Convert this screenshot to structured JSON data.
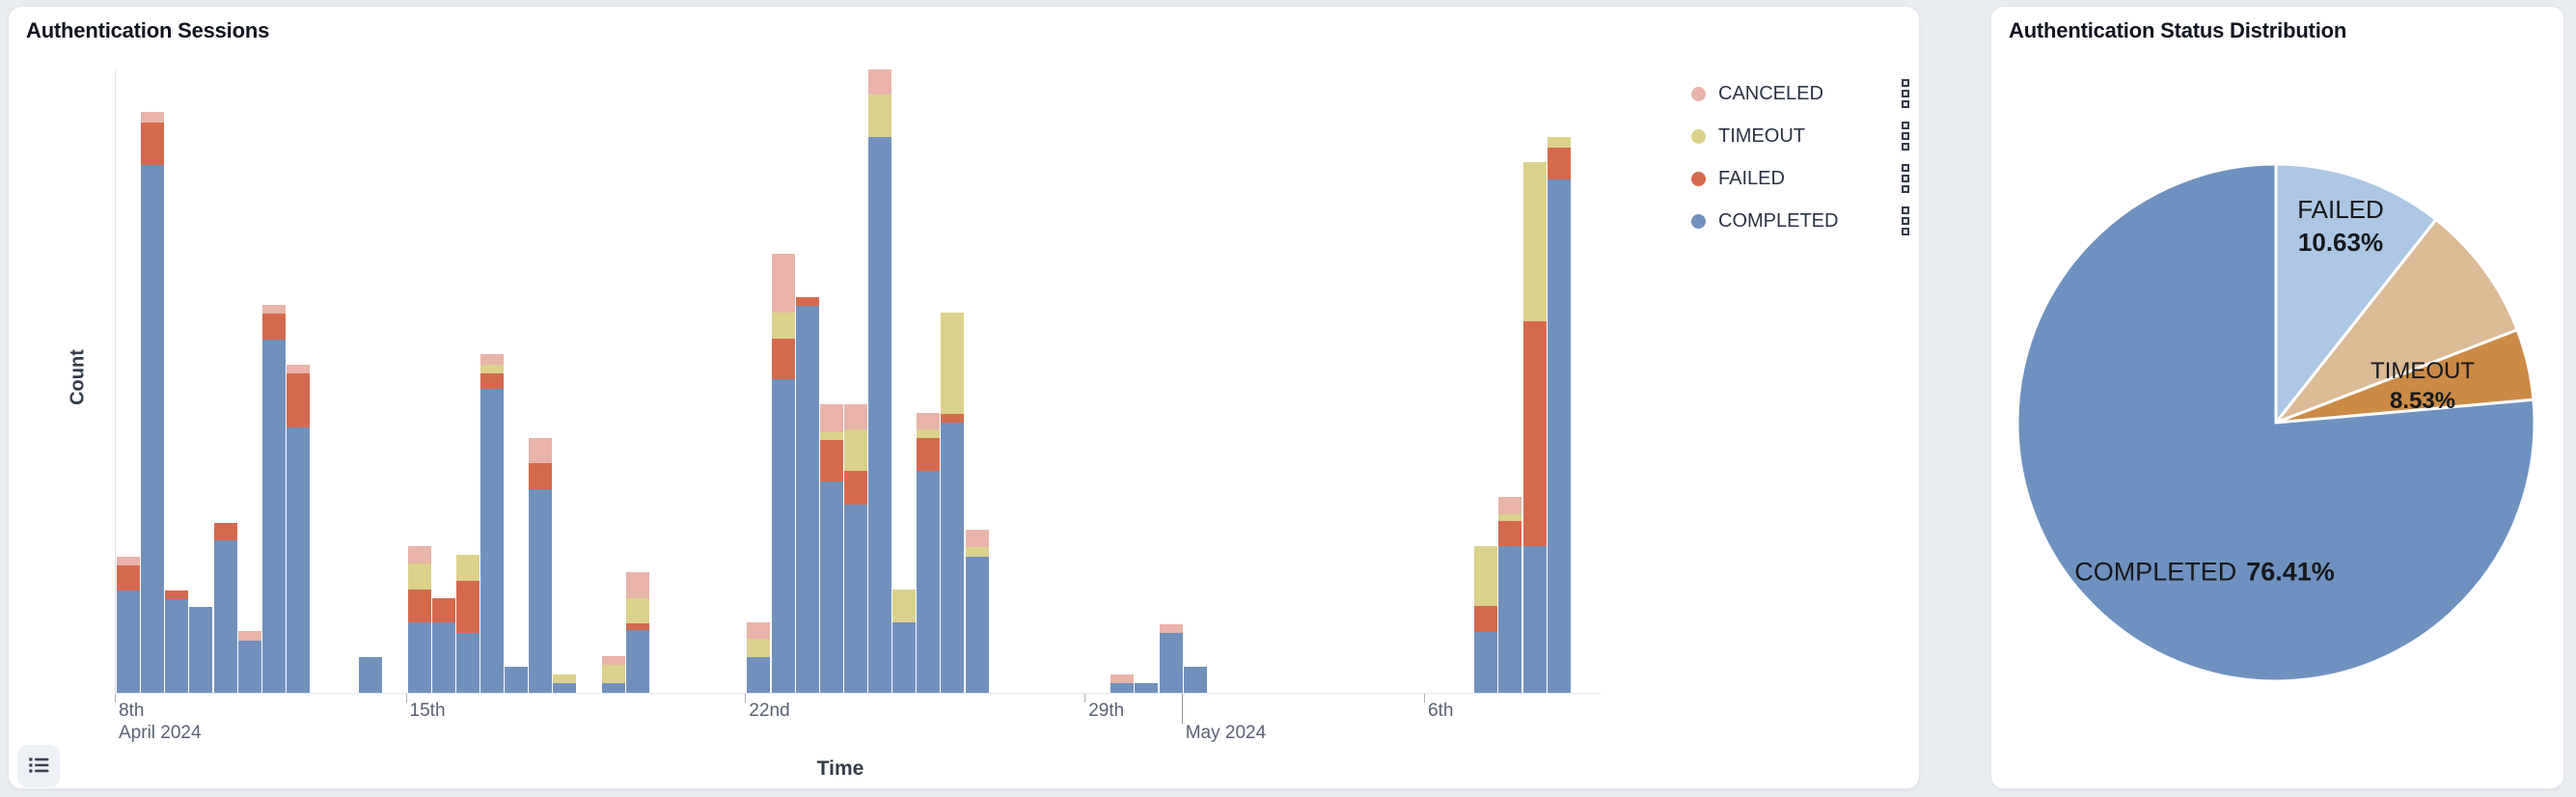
{
  "page": {
    "background_color": "#E8EBEF"
  },
  "left_card": {
    "title": "Authentication Sessions",
    "y_axis_label": "Count",
    "x_axis_label": "Time",
    "legend": [
      {
        "label": "CANCELED",
        "color": "#E8B3A9"
      },
      {
        "label": "TIMEOUT",
        "color": "#DBD18D"
      },
      {
        "label": "FAILED",
        "color": "#D5694E"
      },
      {
        "label": "COMPLETED",
        "color": "#7191BD"
      }
    ],
    "list_button_icon": "list-icon"
  },
  "right_card": {
    "title": "Authentication Status Distribution"
  },
  "chart_data": [
    {
      "type": "bar",
      "stacked": true,
      "title": "Authentication Sessions",
      "xlabel": "Time",
      "ylabel": "Count",
      "legend_position": "top-right",
      "grid": false,
      "y_axis": {
        "tick_labels_shown": false,
        "ylim": [
          0,
          660
        ],
        "note": "no numeric scale displayed; values below are pixel-proportional estimates"
      },
      "x_axis": {
        "unit": "12-hour time buckets",
        "range": "Apr 9 2024 - May 8 2024",
        "slots": 61,
        "ticks": [
          {
            "slot": 0,
            "label": "8th",
            "sub_label": "April 2024"
          },
          {
            "slot": 12,
            "label": "15th"
          },
          {
            "slot": 26,
            "label": "22nd"
          },
          {
            "slot": 40,
            "label": "29th"
          },
          {
            "slot": 44,
            "label": "",
            "sub_label": "May 2024",
            "month_boundary": true
          },
          {
            "slot": 54,
            "label": "6th"
          }
        ]
      },
      "series_colors": {
        "COMPLETED": "#7191BD",
        "FAILED": "#D5694E",
        "TIMEOUT": "#DBD18D",
        "CANCELED": "#E8B3A9"
      },
      "stack_order_bottom_to_top": [
        "COMPLETED",
        "FAILED",
        "TIMEOUT",
        "CANCELED"
      ],
      "bars": [
        {
          "slot": 0,
          "time": "Apr 9 AM",
          "completed": 106,
          "failed": 26,
          "timeout": 0,
          "canceled": 9
        },
        {
          "slot": 1,
          "time": "Apr 9 PM",
          "completed": 547,
          "failed": 44,
          "timeout": 0,
          "canceled": 11
        },
        {
          "slot": 2,
          "time": "Apr 10 AM",
          "completed": 97,
          "failed": 9,
          "timeout": 0,
          "canceled": 0
        },
        {
          "slot": 3,
          "time": "Apr 10 PM",
          "completed": 89,
          "failed": 0,
          "timeout": 0,
          "canceled": 0
        },
        {
          "slot": 4,
          "time": "Apr 11 AM",
          "completed": 158,
          "failed": 18,
          "timeout": 0,
          "canceled": 0
        },
        {
          "slot": 5,
          "time": "Apr 11 PM",
          "completed": 54,
          "failed": 0,
          "timeout": 0,
          "canceled": 10
        },
        {
          "slot": 6,
          "time": "Apr 12 AM",
          "completed": 366,
          "failed": 27,
          "timeout": 0,
          "canceled": 9
        },
        {
          "slot": 7,
          "time": "Apr 12 PM",
          "completed": 275,
          "failed": 56,
          "timeout": 0,
          "canceled": 9
        },
        {
          "slot": 10,
          "time": "Apr 14 AM",
          "completed": 37,
          "failed": 0,
          "timeout": 0,
          "canceled": 0
        },
        {
          "slot": 12,
          "time": "Apr 15 AM",
          "completed": 73,
          "failed": 34,
          "timeout": 27,
          "canceled": 18
        },
        {
          "slot": 13,
          "time": "Apr 15 PM",
          "completed": 73,
          "failed": 25,
          "timeout": 0,
          "canceled": 0
        },
        {
          "slot": 14,
          "time": "Apr 16 AM",
          "completed": 62,
          "failed": 54,
          "timeout": 27,
          "canceled": 0
        },
        {
          "slot": 15,
          "time": "Apr 16 PM",
          "completed": 315,
          "failed": 16,
          "timeout": 9,
          "canceled": 11
        },
        {
          "slot": 16,
          "time": "Apr 17 AM",
          "completed": 27,
          "failed": 0,
          "timeout": 0,
          "canceled": 0
        },
        {
          "slot": 17,
          "time": "Apr 17 PM",
          "completed": 211,
          "failed": 27,
          "timeout": 0,
          "canceled": 26
        },
        {
          "slot": 18,
          "time": "Apr 18 AM",
          "completed": 10,
          "failed": 0,
          "timeout": 9,
          "canceled": 0
        },
        {
          "slot": 20,
          "time": "Apr 19 AM",
          "completed": 10,
          "failed": 0,
          "timeout": 19,
          "canceled": 9
        },
        {
          "slot": 21,
          "time": "Apr 19 PM",
          "completed": 65,
          "failed": 7,
          "timeout": 26,
          "canceled": 27
        },
        {
          "slot": 26,
          "time": "Apr 22 AM",
          "completed": 37,
          "failed": 0,
          "timeout": 19,
          "canceled": 17
        },
        {
          "slot": 27,
          "time": "Apr 22 PM",
          "completed": 325,
          "failed": 42,
          "timeout": 27,
          "canceled": 61
        },
        {
          "slot": 28,
          "time": "Apr 23 AM",
          "completed": 401,
          "failed": 9,
          "timeout": 0,
          "canceled": 0
        },
        {
          "slot": 29,
          "time": "Apr 23 PM",
          "completed": 219,
          "failed": 43,
          "timeout": 8,
          "canceled": 29
        },
        {
          "slot": 30,
          "time": "Apr 24 AM",
          "completed": 195,
          "failed": 35,
          "timeout": 43,
          "canceled": 26
        },
        {
          "slot": 31,
          "time": "Apr 24 PM",
          "completed": 576,
          "failed": 0,
          "timeout": 44,
          "canceled": 26
        },
        {
          "slot": 32,
          "time": "Apr 25 AM",
          "completed": 73,
          "failed": 0,
          "timeout": 34,
          "canceled": 0
        },
        {
          "slot": 33,
          "time": "Apr 25 PM",
          "completed": 230,
          "failed": 34,
          "timeout": 9,
          "canceled": 17
        },
        {
          "slot": 34,
          "time": "Apr 26 AM",
          "completed": 280,
          "failed": 9,
          "timeout": 105,
          "canceled": 0
        },
        {
          "slot": 35,
          "time": "Apr 26 PM",
          "completed": 141,
          "failed": 0,
          "timeout": 10,
          "canceled": 18
        },
        {
          "slot": 41,
          "time": "Apr 29 PM",
          "completed": 10,
          "failed": 0,
          "timeout": 0,
          "canceled": 9
        },
        {
          "slot": 42,
          "time": "Apr 30 AM",
          "completed": 10,
          "failed": 0,
          "timeout": 0,
          "canceled": 0
        },
        {
          "slot": 43,
          "time": "Apr 30 PM",
          "completed": 62,
          "failed": 0,
          "timeout": 0,
          "canceled": 9
        },
        {
          "slot": 44,
          "time": "May 1 AM",
          "completed": 27,
          "failed": 0,
          "timeout": 0,
          "canceled": 0
        },
        {
          "slot": 56,
          "time": "May 7 AM",
          "completed": 63,
          "failed": 27,
          "timeout": 62,
          "canceled": 0
        },
        {
          "slot": 57,
          "time": "May 7 PM",
          "completed": 152,
          "failed": 26,
          "timeout": 7,
          "canceled": 18
        },
        {
          "slot": 58,
          "time": "May 8 AM",
          "completed": 152,
          "failed": 233,
          "timeout": 165,
          "canceled": 0
        },
        {
          "slot": 59,
          "time": "May 8 PM",
          "completed": 532,
          "failed": 33,
          "timeout": 11,
          "canceled": 0
        }
      ]
    },
    {
      "type": "pie",
      "title": "Authentication Status Distribution",
      "start_angle": "12 o'clock",
      "direction": "clockwise",
      "slices": [
        {
          "label": "FAILED",
          "value_pct": 10.63,
          "display_value": "10.63%",
          "color": "#ACC7E5",
          "label_visible": true
        },
        {
          "label": "TIMEOUT",
          "value_pct": 8.53,
          "display_value": "8.53%",
          "color": "#DBBA95",
          "label_visible": true
        },
        {
          "label": "CANCELED",
          "value_pct": 4.43,
          "display_value": "4.43%",
          "color": "#CB8A46",
          "label_visible": false,
          "note": "slice visible but unlabeled; value inferred as remainder"
        },
        {
          "label": "COMPLETED",
          "value_pct": 76.41,
          "display_value": "76.41%",
          "color": "#6E92C0",
          "label_visible": true
        }
      ]
    }
  ]
}
